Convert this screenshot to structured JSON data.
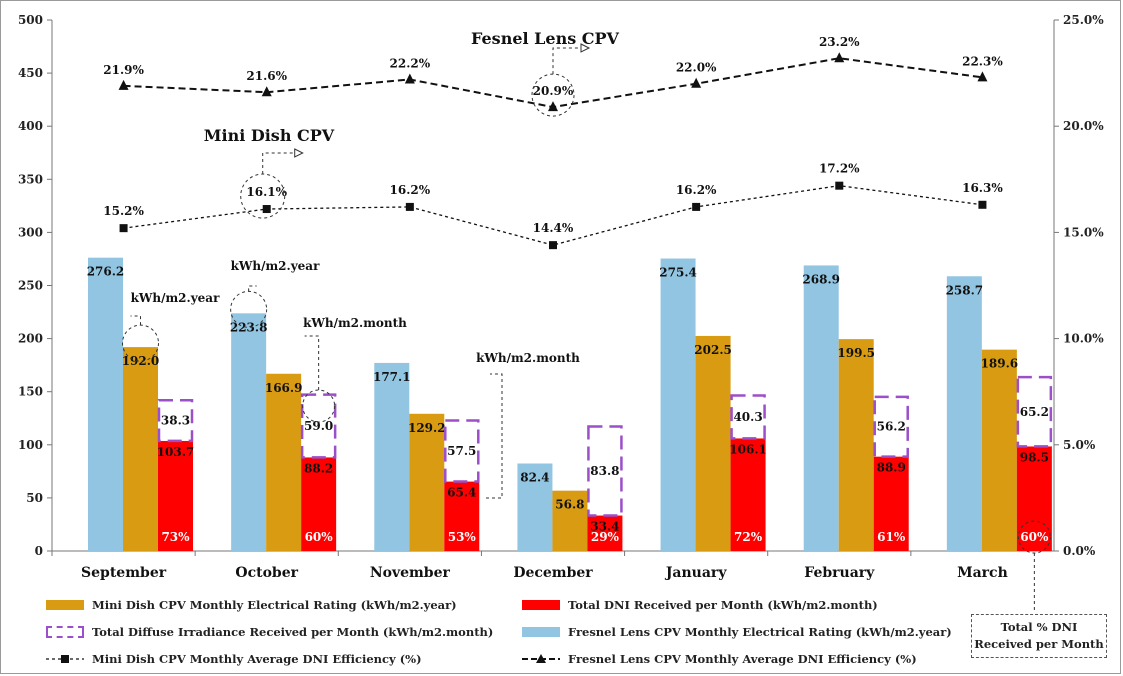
{
  "chart_data": {
    "type": "bar",
    "categories": [
      "September",
      "October",
      "November",
      "December",
      "January",
      "February",
      "March"
    ],
    "y_left": {
      "ticks": [
        "0",
        "50",
        "100",
        "150",
        "200",
        "250",
        "300",
        "350",
        "400",
        "450",
        "500"
      ],
      "ylim": [
        0,
        500
      ]
    },
    "y_right": {
      "ticks": [
        "0.0%",
        "5.0%",
        "10.0%",
        "15.0%",
        "20.0%",
        "25.0%"
      ],
      "ylim": [
        0,
        25
      ]
    },
    "series": [
      {
        "name": "Fresnel Lens CPV Monthly Electrical Rating (kWh/m2.year)",
        "kind": "bar",
        "color": "#92c5e2",
        "values": [
          276.2,
          223.8,
          177.1,
          82.4,
          275.4,
          268.9,
          258.7
        ],
        "labels": [
          "276.2",
          "223.8",
          "177.1",
          "82.4",
          "275.4",
          "268.9",
          "258.7"
        ]
      },
      {
        "name": "Mini Dish CPV Monthly Electrical Rating (kWh/m2.year)",
        "kind": "bar",
        "color": "#d89b12",
        "values": [
          192.0,
          166.9,
          129.2,
          56.8,
          202.5,
          199.5,
          189.6
        ],
        "labels": [
          "192.0",
          "166.9",
          "129.2",
          "56.8",
          "202.5",
          "199.5",
          "189.6"
        ]
      },
      {
        "name": "Total DNI Received per Month (kWh/m2.month)",
        "kind": "stack-bottom",
        "color": "#ff0000",
        "values": [
          103.7,
          88.2,
          65.4,
          33.4,
          106.1,
          88.9,
          98.5
        ],
        "labels": [
          "103.7",
          "88.2",
          "65.4",
          "33.4",
          "106.1",
          "88.9",
          "98.5"
        ],
        "percent_labels": [
          "73%",
          "60%",
          "53%",
          "29%",
          "72%",
          "61%",
          "60%"
        ]
      },
      {
        "name": "Total Diffuse Irradiance Received per Month (kWh/m2.month)",
        "kind": "stack-top",
        "color": "#9b4fc8",
        "values": [
          38.3,
          59.0,
          57.5,
          83.8,
          40.3,
          56.2,
          65.2
        ],
        "labels": [
          "38.3",
          "59.0",
          "57.5",
          "83.8",
          "40.3",
          "56.2",
          "65.2"
        ]
      },
      {
        "name": "Fresnel Lens CPV Monthly Average DNI Efficiency (%)",
        "kind": "line",
        "marker": "triangle",
        "axis": "right",
        "values": [
          21.9,
          21.6,
          22.2,
          20.9,
          22.0,
          23.2,
          22.3
        ],
        "labels": [
          "21.9%",
          "21.6%",
          "22.2%",
          "20.9%",
          "22.0%",
          "23.2%",
          "22.3%"
        ]
      },
      {
        "name": "Mini Dish CPV Monthly Average DNI Efficiency (%)",
        "kind": "line",
        "marker": "square",
        "axis": "right",
        "values": [
          15.2,
          16.1,
          16.2,
          14.4,
          16.2,
          17.2,
          16.3
        ],
        "labels": [
          "15.2%",
          "16.1%",
          "16.2%",
          "14.4%",
          "16.2%",
          "17.2%",
          "16.3%"
        ]
      }
    ],
    "annotations": {
      "fresnel_title": "Fesnel Lens CPV",
      "minidish_title": "Mini Dish CPV",
      "unit_year_1": "kWh/m2.year",
      "unit_year_2": "kWh/m2.year",
      "unit_month_1": "kWh/m2.month",
      "unit_month_2": "kWh/m2.month"
    },
    "note": [
      "Total % DNI",
      "Received per Month"
    ],
    "grid": false,
    "legend_position": "bottom"
  }
}
